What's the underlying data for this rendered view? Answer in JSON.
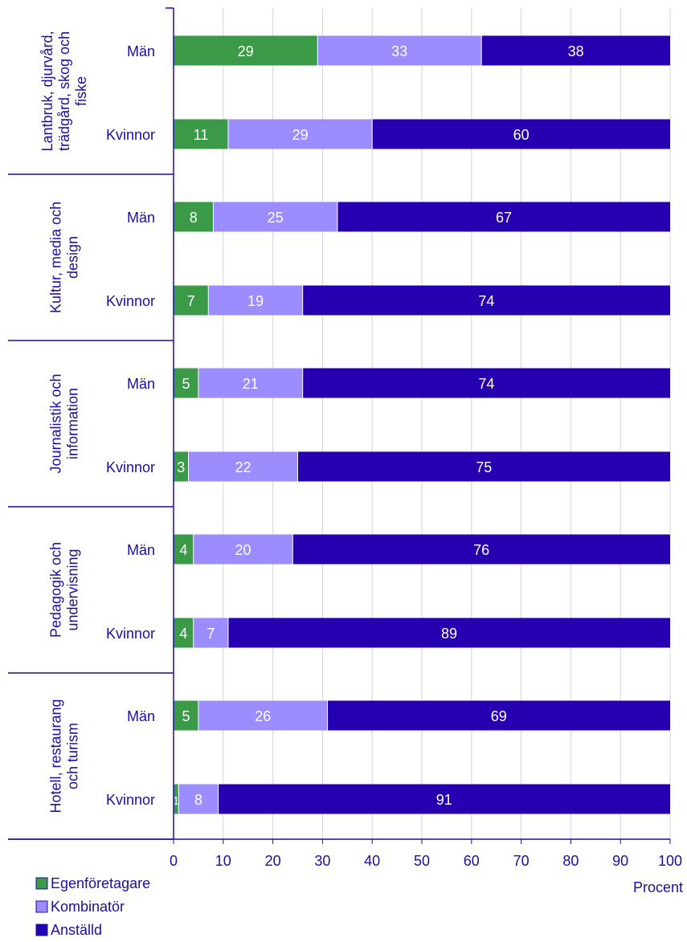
{
  "chart_data": {
    "type": "bar",
    "orientation": "horizontal",
    "stacked": true,
    "groups": [
      {
        "label": [
          "Lantbruk, djurvård,",
          "trädgård, skog och",
          "fiske"
        ],
        "rows": [
          {
            "label": "Män",
            "values": [
              29,
              33,
              38
            ]
          },
          {
            "label": "Kvinnor",
            "values": [
              11,
              29,
              60
            ]
          }
        ]
      },
      {
        "label": [
          "Kultur, media och",
          "design"
        ],
        "rows": [
          {
            "label": "Män",
            "values": [
              8,
              25,
              67
            ]
          },
          {
            "label": "Kvinnor",
            "values": [
              7,
              19,
              74
            ]
          }
        ]
      },
      {
        "label": [
          "Journalistik och",
          "information"
        ],
        "rows": [
          {
            "label": "Män",
            "values": [
              5,
              21,
              74
            ]
          },
          {
            "label": "Kvinnor",
            "values": [
              3,
              22,
              75
            ]
          }
        ]
      },
      {
        "label": [
          "Pedagogik och",
          "undervisning"
        ],
        "rows": [
          {
            "label": "Män",
            "values": [
              4,
              20,
              76
            ]
          },
          {
            "label": "Kvinnor",
            "values": [
              4,
              7,
              89
            ]
          }
        ]
      },
      {
        "label": [
          "Hotell, restaurang",
          "och turism"
        ],
        "rows": [
          {
            "label": "Män",
            "values": [
              5,
              26,
              69
            ]
          },
          {
            "label": "Kvinnor",
            "values": [
              1,
              8,
              91
            ]
          }
        ]
      }
    ],
    "series": [
      {
        "name": "Egenföretagare",
        "color": "#3a9a48"
      },
      {
        "name": "Kombinatör",
        "color": "#9b8cff"
      },
      {
        "name": "Anställd",
        "color": "#2600b0"
      }
    ],
    "xlim": [
      0,
      100
    ],
    "xticks": [
      0,
      10,
      20,
      30,
      40,
      50,
      60,
      70,
      80,
      90,
      100
    ],
    "xlabel": "Procent",
    "grid": true,
    "legend_position": "bottom-left",
    "colors": {
      "text": "#1a0fa0",
      "grid": "#d4d4d4",
      "axis": "#1a0fa0",
      "label_text": "#ffffff"
    }
  }
}
